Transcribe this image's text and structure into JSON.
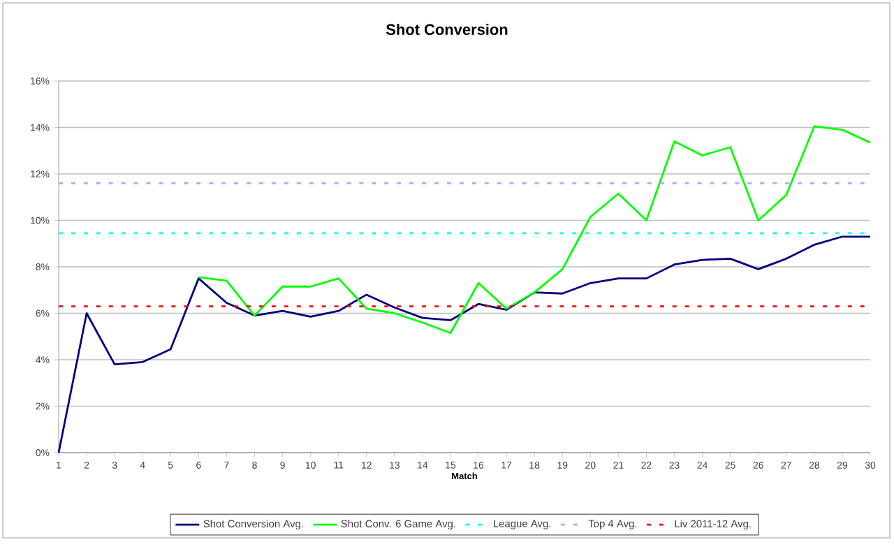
{
  "chart_data": {
    "type": "line",
    "title": "Shot Conversion",
    "xlabel": "Match",
    "x": [
      1,
      2,
      3,
      4,
      5,
      6,
      7,
      8,
      9,
      10,
      11,
      12,
      13,
      14,
      15,
      16,
      17,
      18,
      19,
      20,
      21,
      22,
      23,
      24,
      25,
      26,
      27,
      28,
      29,
      30
    ],
    "series": [
      {
        "name": "Shot Conversion Avg.",
        "color": "#000080",
        "values": [
          0,
          6.0,
          3.8,
          3.9,
          4.45,
          7.5,
          6.45,
          5.9,
          6.1,
          5.85,
          6.1,
          6.8,
          6.25,
          5.8,
          5.7,
          6.4,
          6.15,
          6.9,
          6.85,
          7.3,
          7.5,
          7.5,
          8.1,
          8.3,
          8.35,
          7.9,
          8.35,
          8.95,
          9.3,
          9.3
        ]
      },
      {
        "name": "Shot Conv. 6 Game Avg.",
        "color": "#00ff00",
        "values": [
          null,
          null,
          null,
          null,
          null,
          7.55,
          7.4,
          5.9,
          7.15,
          7.15,
          7.5,
          6.2,
          6.0,
          5.6,
          5.15,
          7.3,
          6.2,
          6.9,
          7.9,
          10.15,
          11.15,
          10.0,
          13.4,
          12.8,
          13.15,
          10.0,
          11.1,
          14.05,
          13.9,
          13.35
        ]
      }
    ],
    "ref_lines": [
      {
        "axis": "y",
        "value": 9.45,
        "label": "League Avg.",
        "color": "#00ffff",
        "line_style": "dashed"
      },
      {
        "axis": "y",
        "value": 11.6,
        "label": "Top 4 Avg.",
        "color": "#cc99ff",
        "line_style": "dashed"
      },
      {
        "axis": "y",
        "value": 6.3,
        "label": "Liv 2011-12 Avg.",
        "color": "#ff0000",
        "line_style": "dashed"
      }
    ],
    "xlim": [
      1,
      30
    ],
    "xticks": [
      1,
      2,
      3,
      4,
      5,
      6,
      7,
      8,
      9,
      10,
      11,
      12,
      13,
      14,
      15,
      16,
      17,
      18,
      19,
      20,
      21,
      22,
      23,
      24,
      25,
      26,
      27,
      28,
      29,
      30
    ],
    "ylim": [
      0,
      16
    ],
    "yticks": [
      {
        "value": 0,
        "label": "0%"
      },
      {
        "value": 2,
        "label": "2%"
      },
      {
        "value": 4,
        "label": "4%"
      },
      {
        "value": 6,
        "label": "6%"
      },
      {
        "value": 8,
        "label": "8%"
      },
      {
        "value": 10,
        "label": "10%"
      },
      {
        "value": 12,
        "label": "12%"
      },
      {
        "value": 14,
        "label": "14%"
      },
      {
        "value": 16,
        "label": "16%"
      }
    ],
    "grid": "y",
    "legend": "bottom",
    "marker": "none",
    "line_style": "solid"
  }
}
